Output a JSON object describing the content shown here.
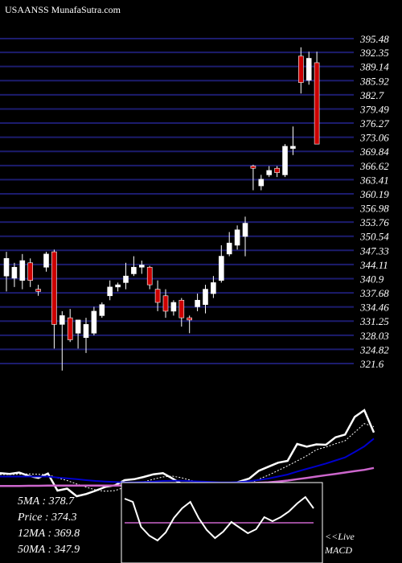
{
  "header": {
    "title": "USAANSS MunafaSutra.com"
  },
  "colors": {
    "background": "#000000",
    "grid": "#1c1c6e",
    "up_candle": "#ffffff",
    "down_candle": "#cc0000",
    "price_line": "#ffffff",
    "ma_short": "#ffffff",
    "ma_long": "#0000cc",
    "ma_trend": "#cc66cc",
    "macd_line": "#ffffff",
    "macd_zero": "#cc66cc"
  },
  "info": {
    "ma5": "5MA : 378.7",
    "price": "Price  : 374.3",
    "ma12": "12MA : 369.8",
    "ma50": "50MA : 347.9"
  },
  "macd": {
    "live": "<<Live",
    "name": "MACD"
  },
  "chart_data": [
    {
      "type": "candlestick",
      "title": "USAANSS MunafaSutra.com",
      "ylim": [
        321.6,
        395.48
      ],
      "ytick_labels": [
        "395.48",
        "392.35",
        "389.14",
        "385.92",
        "382.7",
        "379.49",
        "376.27",
        "373.06",
        "369.84",
        "366.62",
        "363.41",
        "360.19",
        "356.98",
        "353.76",
        "350.54",
        "347.33",
        "344.11",
        "340.9",
        "337.68",
        "334.46",
        "331.25",
        "328.03",
        "324.82",
        "321.6"
      ],
      "grid": true,
      "candles": [
        {
          "o": 341.5,
          "h": 347.0,
          "l": 338.0,
          "c": 345.5
        },
        {
          "o": 341.0,
          "h": 344.5,
          "l": 339.0,
          "c": 343.5
        },
        {
          "o": 340.5,
          "h": 346.5,
          "l": 338.5,
          "c": 345.0
        },
        {
          "o": 344.5,
          "h": 345.5,
          "l": 339.0,
          "c": 340.5
        },
        {
          "o": 338.5,
          "h": 339.5,
          "l": 337.0,
          "c": 338.0
        },
        {
          "o": 343.5,
          "h": 347.0,
          "l": 342.5,
          "c": 346.5
        },
        {
          "o": 347.0,
          "h": 347.5,
          "l": 325.0,
          "c": 330.5
        },
        {
          "o": 330.5,
          "h": 333.5,
          "l": 320.0,
          "c": 332.5
        },
        {
          "o": 332.0,
          "h": 334.0,
          "l": 326.5,
          "c": 327.0
        },
        {
          "o": 328.5,
          "h": 331.5,
          "l": 325.0,
          "c": 331.5
        },
        {
          "o": 327.5,
          "h": 332.0,
          "l": 324.0,
          "c": 330.5
        },
        {
          "o": 328.5,
          "h": 334.5,
          "l": 328.0,
          "c": 333.5
        },
        {
          "o": 332.5,
          "h": 335.5,
          "l": 332.0,
          "c": 335.0
        },
        {
          "o": 337.0,
          "h": 340.5,
          "l": 336.0,
          "c": 339.0
        },
        {
          "o": 339.0,
          "h": 340.0,
          "l": 338.0,
          "c": 339.5
        },
        {
          "o": 340.0,
          "h": 344.5,
          "l": 338.5,
          "c": 341.5
        },
        {
          "o": 342.0,
          "h": 346.0,
          "l": 341.5,
          "c": 343.5
        },
        {
          "o": 343.5,
          "h": 345.0,
          "l": 342.0,
          "c": 344.0
        },
        {
          "o": 343.5,
          "h": 343.8,
          "l": 338.5,
          "c": 339.5
        },
        {
          "o": 338.5,
          "h": 340.5,
          "l": 333.5,
          "c": 335.5
        },
        {
          "o": 337.0,
          "h": 338.5,
          "l": 332.0,
          "c": 333.5
        },
        {
          "o": 333.5,
          "h": 336.0,
          "l": 332.5,
          "c": 335.5
        },
        {
          "o": 336.0,
          "h": 336.5,
          "l": 330.0,
          "c": 332.0
        },
        {
          "o": 332.0,
          "h": 332.5,
          "l": 328.5,
          "c": 331.5
        },
        {
          "o": 334.5,
          "h": 337.5,
          "l": 333.5,
          "c": 336.0
        },
        {
          "o": 335.0,
          "h": 339.5,
          "l": 333.0,
          "c": 338.5
        },
        {
          "o": 337.5,
          "h": 341.5,
          "l": 336.5,
          "c": 340.0
        },
        {
          "o": 340.5,
          "h": 348.5,
          "l": 340.0,
          "c": 346.0
        },
        {
          "o": 346.5,
          "h": 351.5,
          "l": 346.0,
          "c": 349.0
        },
        {
          "o": 348.5,
          "h": 353.0,
          "l": 347.5,
          "c": 352.0
        },
        {
          "o": 350.5,
          "h": 355.0,
          "l": 346.0,
          "c": 353.5
        },
        {
          "o": 366.5,
          "h": 366.8,
          "l": 361.0,
          "c": 366.0
        },
        {
          "o": 362.0,
          "h": 364.5,
          "l": 361.0,
          "c": 363.5
        },
        {
          "o": 364.5,
          "h": 366.5,
          "l": 364.0,
          "c": 365.5
        },
        {
          "o": 366.0,
          "h": 366.5,
          "l": 364.0,
          "c": 365.0
        },
        {
          "o": 364.5,
          "h": 371.5,
          "l": 364.0,
          "c": 371.0
        },
        {
          "o": 370.5,
          "h": 375.5,
          "l": 369.0,
          "c": 371.0
        },
        {
          "o": 391.5,
          "h": 393.5,
          "l": 383.0,
          "c": 385.5
        },
        {
          "o": 386.0,
          "h": 392.5,
          "l": 385.0,
          "c": 391.0
        },
        {
          "o": 390.0,
          "h": 392.5,
          "l": 371.5,
          "c": 371.5
        }
      ]
    },
    {
      "type": "line",
      "name": "price & moving averages",
      "series": [
        {
          "name": "price",
          "color": "#ffffff",
          "values": [
            344,
            343.5,
            344.5,
            342,
            340.5,
            343.8,
            331,
            332.5,
            326.8,
            328.5,
            331,
            333.8,
            335,
            338.8,
            339.5,
            341.2,
            343.2,
            344,
            340,
            335.8,
            334,
            335.5,
            332.5,
            331.8,
            335.5,
            337.8,
            340,
            345.8,
            348.8,
            351.8,
            353.2,
            365.8,
            363.8,
            365.5,
            365.2,
            370.8,
            372.8,
            386,
            391,
            374.3
          ]
        },
        {
          "name": "5MA",
          "color": "#ffffff",
          "values": [
            343,
            343,
            343.2,
            343.5,
            343.2,
            342.8,
            340.5,
            338.5,
            336,
            333.5,
            331.5,
            330.5,
            331,
            333.5,
            335.5,
            337.5,
            339.5,
            341.2,
            341.8,
            340.5,
            338.5,
            336.5,
            335,
            333.5,
            334,
            335,
            336,
            339.5,
            342.5,
            346,
            349.5,
            353.2,
            357,
            361.5,
            363.5,
            366,
            368.2,
            374.5,
            381,
            378.7
          ]
        },
        {
          "name": "12MA",
          "color": "#0000cc",
          "values": [
            341.5,
            341.5,
            341.5,
            341.5,
            341.5,
            341.5,
            340.8,
            340.2,
            339.5,
            338.8,
            338.2,
            337.8,
            337.5,
            337.2,
            337.2,
            337.5,
            337.8,
            338.2,
            338.4,
            338.3,
            338,
            337.8,
            337.5,
            337.2,
            337.2,
            337.5,
            338,
            339,
            340,
            341.5,
            343,
            345.2,
            347.2,
            349.2,
            351.2,
            353.5,
            355.8,
            359.8,
            364,
            369.8
          ]
        },
        {
          "name": "50MA",
          "color": "#cc66cc",
          "values": [
            334.5,
            334.5,
            334.5,
            334.6,
            334.6,
            334.7,
            334.7,
            334.7,
            334.7,
            334.7,
            334.7,
            334.8,
            334.8,
            334.9,
            335,
            335.1,
            335.2,
            335.3,
            335.4,
            335.5,
            335.6,
            335.7,
            335.8,
            335.9,
            336,
            336.2,
            336.5,
            336.8,
            337.2,
            337.8,
            338.5,
            339.5,
            340.5,
            341.5,
            342.5,
            343.5,
            344.5,
            345.5,
            346.5,
            347.9
          ]
        }
      ]
    },
    {
      "type": "line",
      "name": "MACD",
      "series": [
        {
          "name": "MACD",
          "color": "#ffffff",
          "values": [
            3,
            2.6,
            -0.5,
            -1.6,
            -2.2,
            -1.2,
            0.6,
            1.8,
            2.6,
            0.6,
            -0.9,
            -1.9,
            -1.1,
            0.1,
            -0.6,
            -1.3,
            -0.8,
            0.7,
            0.2,
            0.7,
            1.4,
            2.4,
            3.2,
            1.8
          ]
        },
        {
          "name": "zero",
          "color": "#cc66cc",
          "values": [
            0,
            0,
            0,
            0,
            0,
            0,
            0,
            0,
            0,
            0,
            0,
            0,
            0,
            0,
            0,
            0,
            0,
            0,
            0,
            0,
            0,
            0,
            0,
            0
          ]
        }
      ]
    }
  ]
}
